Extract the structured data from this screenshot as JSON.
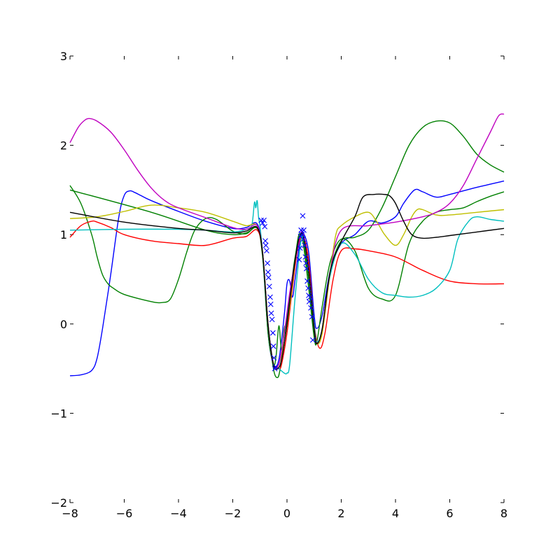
{
  "chart_data": {
    "type": "line",
    "title": "",
    "xlabel": "",
    "ylabel": "",
    "xlim": [
      -8,
      8
    ],
    "ylim": [
      -2,
      3
    ],
    "grid": false,
    "legend": "none",
    "x_ticks": [
      -8,
      -6,
      -4,
      -2,
      0,
      2,
      4,
      6,
      8
    ],
    "x_tick_labels": [
      "−8",
      "−6",
      "−4",
      "−2",
      "0",
      "2",
      "4",
      "6",
      "8"
    ],
    "y_ticks": [
      -2,
      -1,
      0,
      1,
      2,
      3
    ],
    "y_tick_labels": [
      "−2",
      "−1",
      "0",
      "1",
      "2",
      "3"
    ],
    "series": [
      {
        "color": "#0000ff",
        "x": [
          -8,
          -7.6,
          -7.2,
          -7.0,
          -6.8,
          -6.5,
          -6.2,
          -6.0,
          -5.8,
          -5.6,
          -5.4,
          -5.0,
          -4.0,
          -3.0,
          -2.0,
          -1.5,
          -1.1,
          -0.9,
          -0.7,
          -0.5,
          -0.3,
          -0.1,
          0.0,
          0.1,
          0.2,
          0.3,
          0.5,
          0.6,
          0.8,
          1.0,
          1.1,
          1.3,
          1.6,
          2.0,
          2.5,
          3.0,
          3.5,
          4.0,
          4.3,
          4.7,
          5.0,
          5.5,
          6.0,
          7.0,
          8.0
        ],
        "y": [
          -0.58,
          -0.57,
          -0.52,
          -0.38,
          -0.05,
          0.55,
          1.2,
          1.44,
          1.49,
          1.47,
          1.44,
          1.38,
          1.26,
          1.15,
          1.07,
          1.08,
          1.12,
          0.8,
          -0.1,
          -0.45,
          -0.4,
          0.1,
          0.45,
          0.48,
          0.3,
          0.5,
          0.98,
          1.02,
          0.8,
          0.1,
          -0.05,
          0.1,
          0.6,
          0.9,
          1.0,
          1.15,
          1.13,
          1.2,
          1.35,
          1.5,
          1.48,
          1.42,
          1.45,
          1.53,
          1.6
        ]
      },
      {
        "color": "#008000",
        "x": [
          -8,
          -7.6,
          -7.2,
          -7.0,
          -6.8,
          -6.6,
          -6.4,
          -6.0,
          -5.0,
          -4.6,
          -4.3,
          -4.0,
          -3.7,
          -3.4,
          -3.0,
          -2.6,
          -2.0,
          -1.5,
          -1.1,
          -0.9,
          -0.7,
          -0.5,
          -0.4,
          -0.3,
          -0.2,
          -0.1,
          0.0,
          0.2,
          0.4,
          0.5,
          0.6,
          0.8,
          1.0,
          1.1,
          1.3,
          1.6,
          2.0,
          2.5,
          3.0,
          3.5,
          4.0,
          4.5,
          5.0,
          5.5,
          6.0,
          6.5,
          7.0,
          7.5,
          8.0
        ],
        "y": [
          1.55,
          1.35,
          1.0,
          0.75,
          0.55,
          0.45,
          0.4,
          0.33,
          0.25,
          0.24,
          0.28,
          0.5,
          0.8,
          1.05,
          1.18,
          1.17,
          1.04,
          1.01,
          1.08,
          0.75,
          -0.1,
          -0.45,
          -0.35,
          -0.02,
          -0.3,
          -0.05,
          0.05,
          0.5,
          0.95,
          1.0,
          0.9,
          0.4,
          -0.15,
          -0.2,
          0.2,
          0.7,
          0.95,
          0.82,
          0.4,
          0.28,
          0.32,
          0.9,
          1.15,
          1.25,
          1.28,
          1.3,
          1.37,
          1.43,
          1.48
        ]
      },
      {
        "color": "#008000",
        "x": [
          -8,
          -5.0,
          -3.0,
          -2.0,
          -1.5,
          -1.1,
          -0.9,
          -0.7,
          -0.5,
          -0.35,
          -0.25,
          -0.1,
          0.1,
          0.3,
          0.5,
          0.6,
          0.8,
          1.0,
          1.1,
          1.3,
          1.6,
          2.0,
          2.5,
          3.0,
          3.5,
          4.0,
          4.5,
          5.0,
          5.5,
          6.0,
          6.5,
          7.0,
          7.5,
          8.0
        ],
        "y": [
          1.5,
          1.25,
          1.05,
          1.0,
          1.02,
          1.07,
          0.8,
          0.0,
          -0.5,
          -0.6,
          -0.5,
          -0.2,
          0.3,
          0.75,
          1.0,
          0.95,
          0.5,
          -0.1,
          -0.22,
          -0.05,
          0.6,
          0.93,
          0.97,
          1.05,
          1.3,
          1.65,
          2.0,
          2.2,
          2.27,
          2.25,
          2.1,
          1.9,
          1.78,
          1.7
        ]
      },
      {
        "color": "#ff0000",
        "x": [
          -8,
          -7.6,
          -7.2,
          -7.0,
          -6.5,
          -6.0,
          -5.0,
          -4.0,
          -3.0,
          -2.0,
          -1.5,
          -1.1,
          -0.9,
          -0.7,
          -0.5,
          -0.3,
          -0.2,
          0.0,
          0.2,
          0.4,
          0.6,
          0.8,
          1.0,
          1.2,
          1.4,
          1.7,
          2.0,
          2.5,
          3.0,
          4.0,
          5.0,
          6.0,
          7.0,
          8.0
        ],
        "y": [
          0.97,
          1.1,
          1.15,
          1.14,
          1.08,
          1.0,
          0.93,
          0.9,
          0.88,
          0.96,
          0.98,
          1.05,
          0.8,
          0.0,
          -0.45,
          -0.5,
          -0.45,
          -0.1,
          0.4,
          0.85,
          0.98,
          0.7,
          0.0,
          -0.27,
          -0.1,
          0.5,
          0.82,
          0.84,
          0.82,
          0.75,
          0.6,
          0.48,
          0.45,
          0.45
        ]
      },
      {
        "color": "#00bfbf",
        "x": [
          -8,
          -6.0,
          -4.0,
          -3.0,
          -2.0,
          -1.5,
          -1.3,
          -1.2,
          -1.15,
          -1.1,
          -1.05,
          -1.0,
          -0.9,
          -0.7,
          -0.5,
          -0.3,
          -0.1,
          0.0,
          0.1,
          0.3,
          0.5,
          0.6,
          0.8,
          1.0,
          1.1,
          1.3,
          1.6,
          2.0,
          2.5,
          3.0,
          3.5,
          4.0,
          4.5,
          5.0,
          5.5,
          6.0,
          6.3,
          6.7,
          7.0,
          7.5,
          8.0
        ],
        "y": [
          1.05,
          1.06,
          1.06,
          1.05,
          1.03,
          1.06,
          1.1,
          1.36,
          1.3,
          1.38,
          1.2,
          1.1,
          0.8,
          0.0,
          -0.45,
          -0.5,
          -0.55,
          -0.55,
          -0.45,
          0.3,
          0.9,
          0.95,
          0.6,
          0.0,
          -0.2,
          -0.05,
          0.55,
          0.9,
          0.78,
          0.5,
          0.35,
          0.32,
          0.3,
          0.32,
          0.4,
          0.6,
          0.95,
          1.15,
          1.2,
          1.17,
          1.15
        ]
      },
      {
        "color": "#bfbf00",
        "x": [
          -8,
          -7.0,
          -6.0,
          -5.0,
          -4.0,
          -3.0,
          -2.0,
          -1.5,
          -1.1,
          -0.9,
          -0.7,
          -0.5,
          -0.3,
          -0.1,
          0.1,
          0.3,
          0.5,
          0.6,
          0.8,
          1.0,
          1.1,
          1.3,
          1.6,
          1.8,
          2.0,
          2.5,
          3.0,
          3.3,
          3.6,
          4.0,
          4.3,
          4.6,
          4.8,
          5.0,
          5.5,
          6.0,
          7.0,
          8.0
        ],
        "y": [
          1.18,
          1.2,
          1.26,
          1.33,
          1.3,
          1.25,
          1.15,
          1.1,
          1.1,
          0.8,
          0.0,
          -0.45,
          -0.45,
          -0.2,
          0.2,
          0.7,
          1.0,
          1.0,
          0.6,
          -0.05,
          -0.22,
          -0.1,
          0.6,
          1.0,
          1.1,
          1.2,
          1.25,
          1.15,
          1.0,
          0.88,
          1.0,
          1.2,
          1.28,
          1.28,
          1.22,
          1.22,
          1.25,
          1.28
        ]
      },
      {
        "color": "#bf00bf",
        "x": [
          -8,
          -7.7,
          -7.5,
          -7.3,
          -7.0,
          -6.5,
          -6.0,
          -5.5,
          -5.0,
          -4.5,
          -4.0,
          -3.0,
          -2.0,
          -1.5,
          -1.1,
          -0.9,
          -0.7,
          -0.5,
          -0.3,
          -0.1,
          0.1,
          0.3,
          0.5,
          0.6,
          0.8,
          1.0,
          1.1,
          1.3,
          1.6,
          2.0,
          3.0,
          4.0,
          5.0,
          5.5,
          6.0,
          6.5,
          7.0,
          7.5,
          7.8,
          8.0
        ],
        "y": [
          2.03,
          2.2,
          2.27,
          2.3,
          2.27,
          2.15,
          1.95,
          1.72,
          1.52,
          1.38,
          1.3,
          1.19,
          1.08,
          1.06,
          1.1,
          0.8,
          0.0,
          -0.45,
          -0.45,
          -0.1,
          0.35,
          0.7,
          1.0,
          1.0,
          0.6,
          -0.05,
          -0.22,
          -0.05,
          0.6,
          1.05,
          1.1,
          1.14,
          1.2,
          1.25,
          1.35,
          1.55,
          1.85,
          2.15,
          2.33,
          2.35
        ]
      },
      {
        "color": "#000000",
        "x": [
          -8,
          -6.0,
          -4.0,
          -3.0,
          -2.0,
          -1.5,
          -1.1,
          -0.9,
          -0.7,
          -0.5,
          -0.35,
          -0.2,
          0.0,
          0.2,
          0.4,
          0.5,
          0.6,
          0.8,
          1.0,
          1.1,
          1.3,
          1.6,
          2.0,
          2.5,
          2.8,
          3.2,
          3.6,
          3.8,
          4.0,
          4.3,
          4.6,
          5.0,
          5.5,
          6.0,
          7.0,
          8.0
        ],
        "y": [
          1.25,
          1.14,
          1.07,
          1.05,
          1.02,
          1.04,
          1.08,
          0.8,
          0.0,
          -0.45,
          -0.5,
          -0.4,
          0.0,
          0.5,
          0.9,
          1.0,
          0.98,
          0.6,
          -0.05,
          -0.22,
          -0.05,
          0.6,
          0.92,
          1.2,
          1.42,
          1.45,
          1.45,
          1.43,
          1.35,
          1.15,
          1.0,
          0.96,
          0.97,
          0.99,
          1.03,
          1.07
        ]
      }
    ],
    "markers": {
      "style": "x",
      "color": "#0000ff",
      "x": [
        -0.95,
        -0.9,
        -0.85,
        -0.82,
        -0.8,
        -0.78,
        -0.75,
        -0.72,
        -0.7,
        -0.68,
        -0.65,
        -0.62,
        -0.6,
        -0.58,
        -0.55,
        -0.52,
        -0.5,
        -0.48,
        -0.45,
        -0.42,
        0.45,
        0.48,
        0.5,
        0.52,
        0.55,
        0.58,
        0.6,
        0.62,
        0.65,
        0.68,
        0.7,
        0.72,
        0.75,
        0.78,
        0.8,
        0.82,
        0.85,
        0.88,
        0.92,
        0.95
      ],
      "y": [
        1.16,
        1.13,
        1.16,
        1.09,
        0.93,
        0.88,
        0.82,
        0.68,
        0.58,
        0.52,
        0.42,
        0.3,
        0.22,
        0.12,
        0.05,
        -0.1,
        -0.25,
        -0.38,
        -0.5,
        -0.48,
        0.72,
        0.85,
        0.98,
        1.05,
        1.0,
        1.21,
        0.95,
        1.05,
        0.88,
        0.75,
        0.68,
        0.62,
        0.48,
        0.4,
        0.32,
        0.25,
        0.3,
        0.18,
        0.08,
        -0.18
      ]
    }
  }
}
